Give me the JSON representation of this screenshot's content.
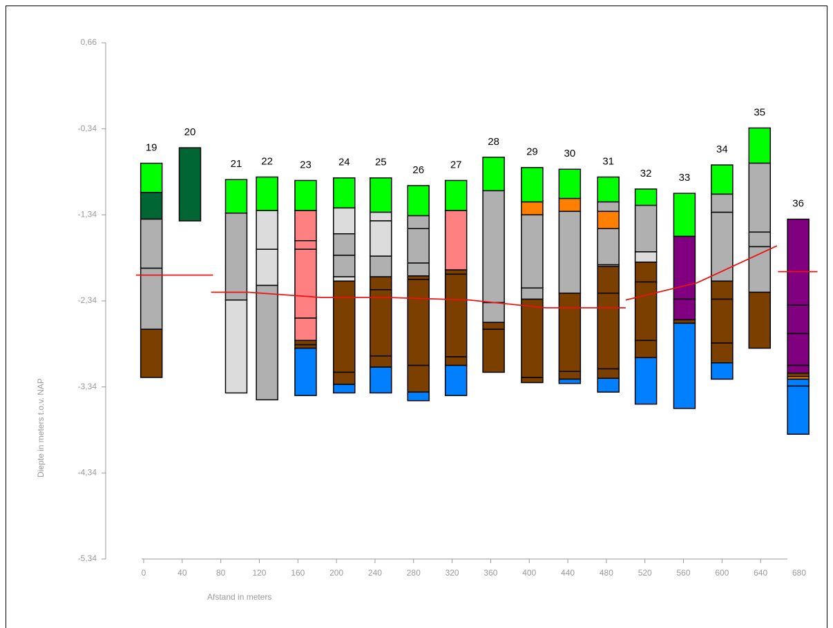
{
  "chart_data": {
    "type": "boring-profile",
    "y_label": "Diepte in meters t.o.v. NAP",
    "x_label": "Afstand in meters",
    "ylim": [
      -5.34,
      0.66
    ],
    "yticks": [
      {
        "value": 0.66,
        "label": "0,66"
      },
      {
        "value": -0.34,
        "label": "-0,34"
      },
      {
        "value": -1.34,
        "label": "-1,34"
      },
      {
        "value": -2.34,
        "label": "-2,34"
      },
      {
        "value": -3.34,
        "label": "-3,34"
      },
      {
        "value": -4.34,
        "label": "-4,34"
      },
      {
        "value": -5.34,
        "label": "-5,34"
      }
    ],
    "xlim": [
      0,
      680
    ],
    "xticks": [
      0,
      40,
      80,
      120,
      160,
      200,
      240,
      280,
      320,
      360,
      400,
      440,
      480,
      520,
      560,
      600,
      640,
      680
    ],
    "borings": [
      {
        "label": "19",
        "x": 8,
        "boundaries": [
          -0.74,
          -1.08,
          -1.39,
          -1.96,
          -2.67,
          -3.23
        ],
        "colors": [
          "#00ff00",
          "#006633",
          "#b0b0b0",
          "#b0b0b0",
          "#7b3f00"
        ]
      },
      {
        "label": "20",
        "x": 48,
        "boundaries": [
          -0.56,
          -1.41
        ],
        "colors": [
          "#006633"
        ]
      },
      {
        "label": "21",
        "x": 96,
        "boundaries": [
          -0.93,
          -1.32,
          -2.33,
          -3.41
        ],
        "colors": [
          "#00ff00",
          "#b0b0b0",
          "#dcdcdc"
        ]
      },
      {
        "label": "22",
        "x": 128,
        "boundaries": [
          -0.9,
          -1.29,
          -1.74,
          -2.16,
          -3.49
        ],
        "colors": [
          "#00ff00",
          "#dcdcdc",
          "#dcdcdc",
          "#b0b0b0"
        ]
      },
      {
        "label": "23",
        "x": 168,
        "boundaries": [
          -0.94,
          -1.29,
          -1.64,
          -1.74,
          -2.54,
          -2.8,
          -2.85,
          -2.89,
          -3.44
        ],
        "colors": [
          "#00ff00",
          "#ff8080",
          "#ff8080",
          "#ff8080",
          "#ff8080",
          "#7b3f00",
          "#7b3f00",
          "#0080ff"
        ]
      },
      {
        "label": "24",
        "x": 208,
        "boundaries": [
          -0.91,
          -1.26,
          -1.56,
          -1.81,
          -2.06,
          -2.11,
          -3.17,
          -3.31,
          -3.41
        ],
        "colors": [
          "#00ff00",
          "#dcdcdc",
          "#b0b0b0",
          "#b0b0b0",
          "#dcdcdc",
          "#7b3f00",
          "#7b3f00",
          "#0080ff"
        ]
      },
      {
        "label": "25",
        "x": 246,
        "boundaries": [
          -0.91,
          -1.31,
          -1.41,
          -1.82,
          -2.06,
          -2.21,
          -2.98,
          -3.11,
          -3.41
        ],
        "colors": [
          "#00ff00",
          "#dcdcdc",
          "#dcdcdc",
          "#b0b0b0",
          "#7b3f00",
          "#7b3f00",
          "#7b3f00",
          "#0080ff"
        ]
      },
      {
        "label": "26",
        "x": 285,
        "boundaries": [
          -1.0,
          -1.35,
          -1.5,
          -1.9,
          -2.05,
          -2.09,
          -3.09,
          -3.4,
          -3.5
        ],
        "colors": [
          "#00ff00",
          "#b0b0b0",
          "#b0b0b0",
          "#b0b0b0",
          "#7b3f00",
          "#7b3f00",
          "#7b3f00",
          "#0080ff"
        ]
      },
      {
        "label": "27",
        "x": 324,
        "boundaries": [
          -0.94,
          -1.29,
          -1.98,
          -2.03,
          -2.99,
          -3.09,
          -3.44
        ],
        "colors": [
          "#00ff00",
          "#ff8080",
          "#7b3f00",
          "#7b3f00",
          "#7b3f00",
          "#0080ff"
        ]
      },
      {
        "label": "28",
        "x": 363,
        "boundaries": [
          -0.67,
          -1.06,
          -2.36,
          -2.59,
          -2.67,
          -3.17
        ],
        "colors": [
          "#00ff00",
          "#b0b0b0",
          "#b0b0b0",
          "#7b3f00",
          "#7b3f00"
        ]
      },
      {
        "label": "29",
        "x": 403,
        "boundaries": [
          -0.79,
          -1.19,
          -1.34,
          -2.19,
          -2.32,
          -3.23,
          -3.29
        ],
        "colors": [
          "#00ff00",
          "#ff8000",
          "#b0b0b0",
          "#b0b0b0",
          "#7b3f00",
          "#7b3f00"
        ]
      },
      {
        "label": "30",
        "x": 442,
        "boundaries": [
          -0.81,
          -1.15,
          -1.3,
          -2.25,
          -3.16,
          -3.25,
          -3.3
        ],
        "colors": [
          "#00ff00",
          "#ff8000",
          "#b0b0b0",
          "#7b3f00",
          "#7b3f00",
          "#0080ff"
        ]
      },
      {
        "label": "31",
        "x": 482,
        "boundaries": [
          -0.9,
          -1.19,
          -1.3,
          -1.5,
          -1.92,
          -1.94,
          -2.25,
          -3.13,
          -3.24,
          -3.4
        ],
        "colors": [
          "#00ff00",
          "#b0b0b0",
          "#ff8000",
          "#b0b0b0",
          "#b0b0b0",
          "#7b3f00",
          "#7b3f00",
          "#7b3f00",
          "#0080ff"
        ]
      },
      {
        "label": "32",
        "x": 521,
        "boundaries": [
          -1.04,
          -1.23,
          -1.77,
          -1.89,
          -2.12,
          -2.8,
          -3.0,
          -3.54
        ],
        "colors": [
          "#00ff00",
          "#b0b0b0",
          "#dcdcdc",
          "#7b3f00",
          "#7b3f00",
          "#7b3f00",
          "#0080ff"
        ]
      },
      {
        "label": "33",
        "x": 561,
        "boundaries": [
          -1.09,
          -1.59,
          -2.32,
          -2.56,
          -2.6,
          -3.59
        ],
        "colors": [
          "#00ff00",
          "#800080",
          "#800080",
          "#7b3f00",
          "#0080ff"
        ]
      },
      {
        "label": "34",
        "x": 600,
        "boundaries": [
          -0.76,
          -1.1,
          -1.31,
          -2.11,
          -2.32,
          -2.83,
          -3.06,
          -3.25
        ],
        "colors": [
          "#00ff00",
          "#b0b0b0",
          "#b0b0b0",
          "#7b3f00",
          "#7b3f00",
          "#7b3f00",
          "#0080ff"
        ]
      },
      {
        "label": "35",
        "x": 639,
        "boundaries": [
          -0.33,
          -0.74,
          -1.54,
          -1.71,
          -2.24,
          -2.89
        ],
        "colors": [
          "#00ff00",
          "#b0b0b0",
          "#b0b0b0",
          "#b0b0b0",
          "#7b3f00"
        ]
      },
      {
        "label": "36",
        "x": 679,
        "boundaries": [
          -1.39,
          -2.39,
          -2.72,
          -3.09,
          -3.18,
          -3.22,
          -3.25,
          -3.33,
          -3.89
        ],
        "colors": [
          "#800080",
          "#800080",
          "#800080",
          "#800080",
          "#7b3f00",
          "#ff8000",
          "#0080ff",
          "#0080ff"
        ]
      }
    ],
    "groundwater": {
      "color": "#ee1111",
      "x": [
        -8,
        72,
        null,
        70,
        109,
        184,
        252,
        338,
        417,
        500,
        null,
        500,
        574,
        657,
        null,
        658,
        699
      ],
      "values": [
        -2.04,
        -2.04,
        null,
        -2.24,
        -2.24,
        -2.3,
        -2.3,
        -2.33,
        -2.42,
        -2.42,
        null,
        -2.33,
        -2.13,
        -1.7,
        null,
        -2.0,
        -2.0
      ]
    }
  }
}
